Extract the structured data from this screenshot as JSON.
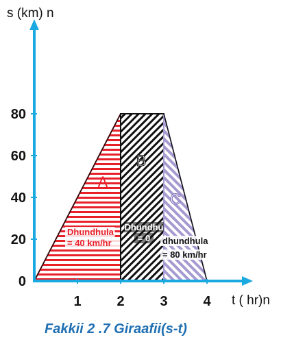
{
  "chart_data": {
    "type": "area",
    "ylabel": "s (km) n",
    "xlabel": "t ( hr)n",
    "x_ticks": [
      "1",
      "2",
      "3",
      "4"
    ],
    "y_ticks": [
      "0",
      "20",
      "40",
      "60",
      "80"
    ],
    "xlim": [
      0,
      4.2
    ],
    "ylim": [
      0,
      80
    ],
    "series": [
      {
        "x": [
          0,
          2,
          3,
          4
        ],
        "values": [
          0,
          80,
          80,
          0
        ]
      }
    ],
    "regions": [
      {
        "label": "A",
        "x_start": 0,
        "x_end": 2,
        "speed_lines": [
          "Dhundhula",
          "= 40 km/hr"
        ],
        "color": "#e8202a"
      },
      {
        "label": "B",
        "x_start": 2,
        "x_end": 3,
        "speed_lines": [
          "Dhundhu",
          "= 0"
        ],
        "color": "#111111"
      },
      {
        "label": "C",
        "x_start": 3,
        "x_end": 4,
        "speed_lines": [
          "dhundhula",
          "= 80 km/hr"
        ],
        "color": "#a79ad0"
      }
    ],
    "grid": false
  },
  "caption": "Fakkii 2 .7 Giraafii(s-t)",
  "colors": {
    "axis": "#1aa9e0",
    "caption": "#1f6fb2"
  }
}
